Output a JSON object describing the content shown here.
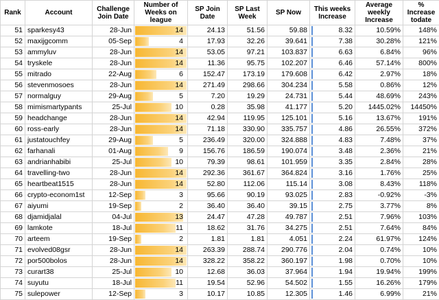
{
  "headers": {
    "rank": "Rank",
    "account": "Account",
    "join_date": "Challenge Join Date",
    "weeks": "Number of Weeks on league",
    "sp_join": "SP Join Date",
    "sp_last": "SP Last Week",
    "sp_now": "SP Now",
    "inc_week": "This weeks Increase",
    "avg_weekly": "Average weekly Increase",
    "pct_total": "% Increase todate"
  },
  "weeks_max": 14,
  "colors": {
    "bar": "#f7b733",
    "increase_marker": "#5b8fd6",
    "grid": "#d4d4d4"
  },
  "rows": [
    {
      "rank": "51",
      "account": "sparkesy43",
      "join_date": "28-Jun",
      "weeks": 14,
      "weeks_label": "14",
      "sp_join": "24.13",
      "sp_last": "51.56",
      "sp_now": "59.88",
      "inc": "8.32",
      "avg": "10.59%",
      "pct": "148%"
    },
    {
      "rank": "52",
      "account": "maxijgcomm",
      "join_date": "05-Sep",
      "weeks": 4,
      "weeks_label": "4",
      "sp_join": "17.93",
      "sp_last": "32.26",
      "sp_now": "39.641",
      "inc": "7.38",
      "avg": "30.28%",
      "pct": "121%"
    },
    {
      "rank": "53",
      "account": "ammyluv",
      "join_date": "28-Jun",
      "weeks": 14,
      "weeks_label": "14",
      "sp_join": "53.05",
      "sp_last": "97.21",
      "sp_now": "103.837",
      "inc": "6.63",
      "avg": "6.84%",
      "pct": "96%"
    },
    {
      "rank": "54",
      "account": "tryskele",
      "join_date": "28-Jun",
      "weeks": 14,
      "weeks_label": "14",
      "sp_join": "11.36",
      "sp_last": "95.75",
      "sp_now": "102.207",
      "inc": "6.46",
      "avg": "57.14%",
      "pct": "800%"
    },
    {
      "rank": "55",
      "account": "mitrado",
      "join_date": "22-Aug",
      "weeks": 6,
      "weeks_label": "6",
      "sp_join": "152.47",
      "sp_last": "173.19",
      "sp_now": "179.608",
      "inc": "6.42",
      "avg": "2.97%",
      "pct": "18%"
    },
    {
      "rank": "56",
      "account": "stevenmosoes",
      "join_date": "28-Jun",
      "weeks": 14,
      "weeks_label": "14",
      "sp_join": "271.49",
      "sp_last": "298.66",
      "sp_now": "304.234",
      "inc": "5.58",
      "avg": "0.86%",
      "pct": "12%"
    },
    {
      "rank": "57",
      "account": "normalguy",
      "join_date": "29-Aug",
      "weeks": 5,
      "weeks_label": "5",
      "sp_join": "7.20",
      "sp_last": "19.29",
      "sp_now": "24.731",
      "inc": "5.44",
      "avg": "48.69%",
      "pct": "243%"
    },
    {
      "rank": "58",
      "account": "mimismartypants",
      "join_date": "25-Jul",
      "weeks": 10,
      "weeks_label": "10",
      "sp_join": "0.28",
      "sp_last": "35.98",
      "sp_now": "41.177",
      "inc": "5.20",
      "avg": "1445.02%",
      "pct": "14450%"
    },
    {
      "rank": "59",
      "account": "headchange",
      "join_date": "28-Jun",
      "weeks": 14,
      "weeks_label": "14",
      "sp_join": "42.94",
      "sp_last": "119.95",
      "sp_now": "125.101",
      "inc": "5.16",
      "avg": "13.67%",
      "pct": "191%"
    },
    {
      "rank": "60",
      "account": "ross-early",
      "join_date": "28-Jun",
      "weeks": 14,
      "weeks_label": "14",
      "sp_join": "71.18",
      "sp_last": "330.90",
      "sp_now": "335.757",
      "inc": "4.86",
      "avg": "26.55%",
      "pct": "372%"
    },
    {
      "rank": "61",
      "account": "justatouchfey",
      "join_date": "29-Aug",
      "weeks": 5,
      "weeks_label": "5",
      "sp_join": "236.49",
      "sp_last": "320.00",
      "sp_now": "324.888",
      "inc": "4.83",
      "avg": "7.48%",
      "pct": "37%"
    },
    {
      "rank": "62",
      "account": "farhanali",
      "join_date": "01-Aug",
      "weeks": 9,
      "weeks_label": "9",
      "sp_join": "156.76",
      "sp_last": "186.59",
      "sp_now": "190.074",
      "inc": "3.48",
      "avg": "2.36%",
      "pct": "21%"
    },
    {
      "rank": "63",
      "account": "andrianhabibi",
      "join_date": "25-Jul",
      "weeks": 10,
      "weeks_label": "10",
      "sp_join": "79.39",
      "sp_last": "98.61",
      "sp_now": "101.959",
      "inc": "3.35",
      "avg": "2.84%",
      "pct": "28%"
    },
    {
      "rank": "64",
      "account": "travelling-two",
      "join_date": "28-Jun",
      "weeks": 14,
      "weeks_label": "14",
      "sp_join": "292.36",
      "sp_last": "361.67",
      "sp_now": "364.824",
      "inc": "3.16",
      "avg": "1.76%",
      "pct": "25%"
    },
    {
      "rank": "65",
      "account": "heartbeat1515",
      "join_date": "28-Jun",
      "weeks": 14,
      "weeks_label": "14",
      "sp_join": "52.80",
      "sp_last": "112.06",
      "sp_now": "115.14",
      "inc": "3.08",
      "avg": "8.43%",
      "pct": "118%"
    },
    {
      "rank": "66",
      "account": "crypto-econom1st",
      "join_date": "12-Sep",
      "weeks": 3,
      "weeks_label": "3",
      "sp_join": "95.66",
      "sp_last": "90.19",
      "sp_now": "93.025",
      "inc": "2.83",
      "avg": "-0.92%",
      "pct": "-3%"
    },
    {
      "rank": "67",
      "account": "aiyumi",
      "join_date": "19-Sep",
      "weeks": 2,
      "weeks_label": "2",
      "sp_join": "36.40",
      "sp_last": "36.40",
      "sp_now": "39.15",
      "inc": "2.75",
      "avg": "3.77%",
      "pct": "8%"
    },
    {
      "rank": "68",
      "account": "djamidjalal",
      "join_date": "04-Jul",
      "weeks": 13,
      "weeks_label": "13",
      "sp_join": "24.47",
      "sp_last": "47.28",
      "sp_now": "49.787",
      "inc": "2.51",
      "avg": "7.96%",
      "pct": "103%"
    },
    {
      "rank": "69",
      "account": "lamkote",
      "join_date": "18-Jul",
      "weeks": 11,
      "weeks_label": "11",
      "sp_join": "18.62",
      "sp_last": "31.76",
      "sp_now": "34.275",
      "inc": "2.51",
      "avg": "7.64%",
      "pct": "84%"
    },
    {
      "rank": "70",
      "account": "arteem",
      "join_date": "19-Sep",
      "weeks": 2,
      "weeks_label": "2",
      "sp_join": "1.81",
      "sp_last": "1.81",
      "sp_now": "4.051",
      "inc": "2.24",
      "avg": "61.97%",
      "pct": "124%"
    },
    {
      "rank": "71",
      "account": "evolved08gsr",
      "join_date": "28-Jun",
      "weeks": 14,
      "weeks_label": "14",
      "sp_join": "263.39",
      "sp_last": "288.74",
      "sp_now": "290.776",
      "inc": "2.04",
      "avg": "0.74%",
      "pct": "10%"
    },
    {
      "rank": "72",
      "account": "por500bolos",
      "join_date": "28-Jun",
      "weeks": 14,
      "weeks_label": "14",
      "sp_join": "328.22",
      "sp_last": "358.22",
      "sp_now": "360.197",
      "inc": "1.98",
      "avg": "0.70%",
      "pct": "10%"
    },
    {
      "rank": "73",
      "account": "curart38",
      "join_date": "25-Jul",
      "weeks": 10,
      "weeks_label": "10",
      "sp_join": "12.68",
      "sp_last": "36.03",
      "sp_now": "37.964",
      "inc": "1.94",
      "avg": "19.94%",
      "pct": "199%"
    },
    {
      "rank": "74",
      "account": "suyutu",
      "join_date": "18-Jul",
      "weeks": 11,
      "weeks_label": "11",
      "sp_join": "19.54",
      "sp_last": "52.96",
      "sp_now": "54.502",
      "inc": "1.55",
      "avg": "16.26%",
      "pct": "179%"
    },
    {
      "rank": "75",
      "account": "sulepower",
      "join_date": "12-Sep",
      "weeks": 3,
      "weeks_label": "3",
      "sp_join": "10.17",
      "sp_last": "10.85",
      "sp_now": "12.305",
      "inc": "1.46",
      "avg": "6.99%",
      "pct": "21%"
    }
  ]
}
